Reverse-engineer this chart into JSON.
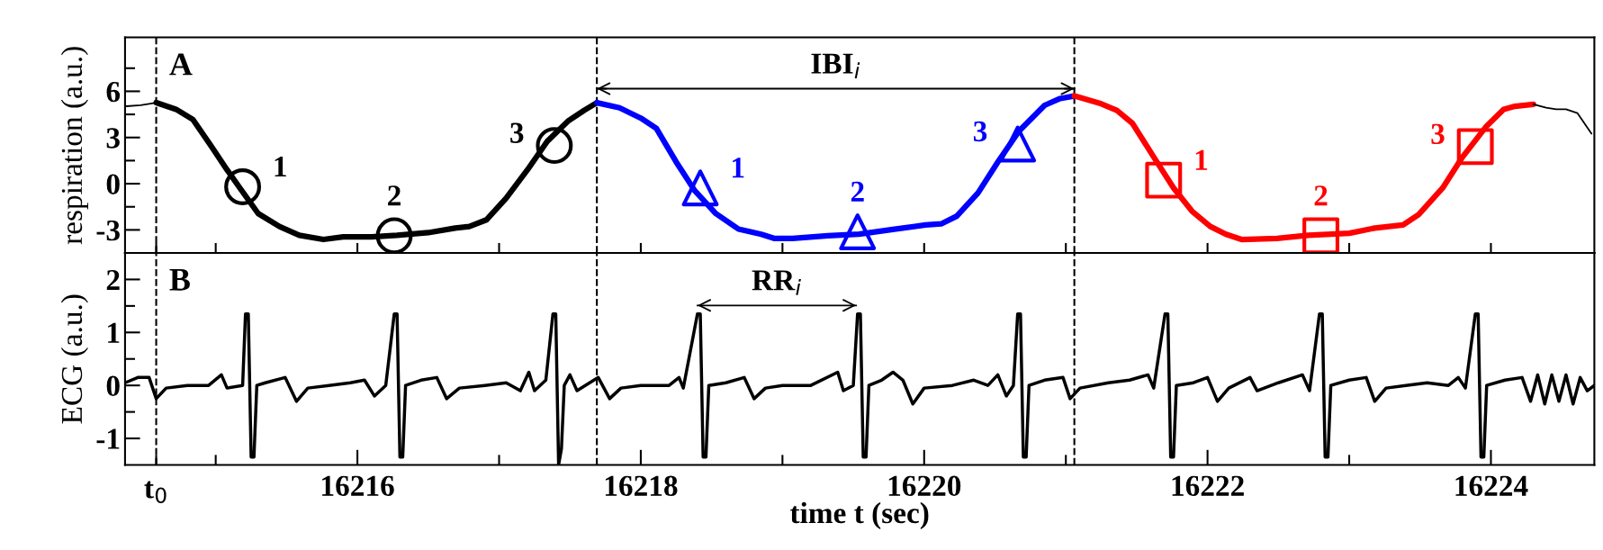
{
  "chart_data": [
    {
      "type": "line",
      "title": "A",
      "ylabel": "respiration (a.u.)",
      "xlim": [
        16214.36,
        16224.73
      ],
      "ylim": [
        -4.5,
        9.5
      ],
      "xticks": [
        {
          "value": 16214.58,
          "label": null
        },
        {
          "value": 16215,
          "label": null
        },
        {
          "value": 16216,
          "label": null
        },
        {
          "value": 16217,
          "label": null
        },
        {
          "value": 16218,
          "label": null
        },
        {
          "value": 16219,
          "label": null
        },
        {
          "value": 16220,
          "label": null
        },
        {
          "value": 16221,
          "label": null
        },
        {
          "value": 16222,
          "label": null
        },
        {
          "value": 16223,
          "label": null
        },
        {
          "value": 16224,
          "label": null
        }
      ],
      "yticks": [
        -3,
        {
          "value": -1.5,
          "label": null
        },
        0,
        {
          "value": 1.5,
          "label": null
        },
        3,
        {
          "value": 4.5,
          "label": null
        },
        6,
        {
          "value": 7.5,
          "label": null
        }
      ],
      "tick_labels": "y",
      "grid": false,
      "legend": false,
      "ref_lines": [
        {
          "axis": "x",
          "value": 16214.58,
          "line_style": "dashed",
          "color": "#000000"
        },
        {
          "axis": "x",
          "value": 16217.69,
          "line_style": "dashed",
          "color": "#000000"
        },
        {
          "axis": "x",
          "value": 16221.06,
          "line_style": "dashed",
          "color": "#000000"
        }
      ],
      "annotations": [
        {
          "text": "IBI$_{i}$",
          "x": 16219.375,
          "y": 6.17
        },
        {
          "text": "1",
          "x": 16215.19,
          "y": -0.2
        },
        {
          "text": "2",
          "x": 16216.26,
          "y": -3.38
        },
        {
          "text": "3",
          "x": 16217.39,
          "y": 2.48
        },
        {
          "text": "1",
          "x": 16218.42,
          "y": -0.27
        },
        {
          "text": "2",
          "x": 16219.53,
          "y": -3.12
        },
        {
          "text": "3",
          "x": 16220.66,
          "y": 2.58
        },
        {
          "text": "1",
          "x": 16221.69,
          "y": 0.23
        },
        {
          "text": "2",
          "x": 16222.8,
          "y": -3.38
        },
        {
          "text": "3",
          "x": 16223.89,
          "y": 2.41
        }
      ],
      "series": [
        {
          "color": "#000000",
          "x": [
            16214.37,
            16214.47,
            16214.58
          ],
          "values": [
            5.03,
            5.1,
            5.26
          ]
        },
        {
          "color": "#000000",
          "x": [
            16214.58,
            16214.72,
            16214.84,
            16214.97,
            16215.08,
            16215.17,
            16215.3,
            16215.45,
            16215.59,
            16215.76,
            16215.9,
            16216.1,
            16216.28,
            16216.5,
            16216.69,
            16216.79,
            16216.91,
            16217.05,
            16217.2,
            16217.34,
            16217.49,
            16217.6,
            16217.69
          ],
          "values": [
            5.26,
            4.83,
            4.16,
            2.41,
            0.9,
            -0.27,
            -1.94,
            -2.78,
            -3.35,
            -3.62,
            -3.45,
            -3.45,
            -3.35,
            -3.18,
            -2.88,
            -2.78,
            -2.35,
            -0.94,
            0.9,
            2.75,
            4.09,
            4.76,
            5.26
          ]
        },
        {
          "color": "#0000ff",
          "x": [
            16217.69,
            16217.85,
            16218.0,
            16218.11,
            16218.25,
            16218.38,
            16218.53,
            16218.69,
            16218.85,
            16218.94,
            16219.07,
            16219.32,
            16219.54,
            16219.79,
            16220.01,
            16220.12,
            16220.23,
            16220.38,
            16220.52,
            16220.67,
            16220.85,
            16220.96,
            16221.06
          ],
          "values": [
            5.26,
            4.93,
            4.26,
            3.59,
            1.41,
            -0.44,
            -1.94,
            -2.95,
            -3.28,
            -3.55,
            -3.55,
            -3.38,
            -3.28,
            -2.95,
            -2.68,
            -2.61,
            -2.11,
            -0.6,
            1.41,
            3.42,
            5.09,
            5.53,
            5.7
          ]
        },
        {
          "color": "#ff0000",
          "x": [
            16221.06,
            16221.25,
            16221.36,
            16221.47,
            16221.62,
            16221.76,
            16221.89,
            16222.02,
            16222.13,
            16222.24,
            16222.49,
            16222.71,
            16223.0,
            16223.18,
            16223.38,
            16223.49,
            16223.66,
            16223.8,
            16223.97,
            16224.09,
            16224.17,
            16224.3
          ],
          "values": [
            5.7,
            5.19,
            4.76,
            3.92,
            1.74,
            -0.27,
            -1.78,
            -2.78,
            -3.28,
            -3.62,
            -3.55,
            -3.35,
            -3.22,
            -2.88,
            -2.68,
            -2.01,
            -0.27,
            1.74,
            3.75,
            4.83,
            5.03,
            5.16
          ]
        },
        {
          "color": "#000000",
          "x": [
            16224.3,
            16224.39,
            16224.46,
            16224.53,
            16224.61,
            16224.71
          ],
          "values": [
            5.16,
            4.93,
            4.83,
            4.83,
            4.59,
            3.25
          ]
        },
        {
          "type": "scatter",
          "marker": "circle",
          "color": "#000000",
          "x": [
            16215.19
          ],
          "values": [
            -0.2
          ]
        },
        {
          "type": "scatter",
          "marker": "circle",
          "color": "#000000",
          "x": [
            16216.26
          ],
          "values": [
            -3.38
          ]
        },
        {
          "type": "scatter",
          "marker": "circle",
          "color": "#000000",
          "x": [
            16217.39
          ],
          "values": [
            2.48
          ]
        },
        {
          "type": "scatter",
          "marker": "triangle",
          "color": "#0000ff",
          "x": [
            16218.42
          ],
          "values": [
            -0.27
          ]
        },
        {
          "type": "scatter",
          "marker": "triangle",
          "color": "#0000ff",
          "x": [
            16219.53
          ],
          "values": [
            -3.12
          ]
        },
        {
          "type": "scatter",
          "marker": "triangle",
          "color": "#0000ff",
          "x": [
            16220.66
          ],
          "values": [
            2.58
          ]
        },
        {
          "type": "scatter",
          "marker": "square",
          "color": "#ff0000",
          "x": [
            16221.69
          ],
          "values": [
            0.23
          ]
        },
        {
          "type": "scatter",
          "marker": "square",
          "color": "#ff0000",
          "x": [
            16222.8
          ],
          "values": [
            -3.38
          ]
        },
        {
          "type": "scatter",
          "marker": "square",
          "color": "#ff0000",
          "x": [
            16223.89
          ],
          "values": [
            2.41
          ]
        },
        {
          "color": "#000000",
          "x": [
            16217.69,
            16221.06
          ],
          "values": [
            6.17,
            6.17
          ]
        }
      ]
    },
    {
      "type": "line",
      "title": "B",
      "ylabel": "ECG (a.u.)",
      "xlabel": "time t (sec)",
      "xlim": [
        16214.36,
        16224.73
      ],
      "ylim": [
        -1.5,
        2.5
      ],
      "xticks": [
        {
          "value": 16214.58,
          "label": null
        },
        {
          "value": 16215,
          "label": null
        },
        16216,
        {
          "value": 16217,
          "label": null
        },
        16218,
        {
          "value": 16219,
          "label": null
        },
        16220,
        {
          "value": 16221,
          "label": null
        },
        16222,
        {
          "value": 16223,
          "label": null
        },
        16224
      ],
      "yticks": [
        -1,
        {
          "value": -0.5,
          "label": null
        },
        0,
        {
          "value": 0.5,
          "label": null
        },
        1,
        {
          "value": 1.5,
          "label": null
        },
        2
      ],
      "grid": false,
      "legend": false,
      "ref_lines": [
        {
          "axis": "x",
          "value": 16214.58,
          "line_style": "dashed",
          "color": "#000000",
          "label": "t$_{0}$"
        },
        {
          "axis": "x",
          "value": 16217.69,
          "line_style": "dashed",
          "color": "#000000"
        },
        {
          "axis": "x",
          "value": 16221.06,
          "line_style": "dashed",
          "color": "#000000"
        }
      ],
      "annotations": [
        {
          "text": "RR$_{i}$",
          "x": 16218.96,
          "y": 1.51
        }
      ],
      "series": [
        {
          "color": "#000000",
          "x": [
            16214.36,
            16214.45,
            16214.53,
            16214.58,
            16214.65,
            16214.8,
            16214.95,
            16215.04,
            16215.08,
            16215.19,
            16215.21,
            16215.23,
            16215.25,
            16215.27,
            16215.29,
            16215.35,
            16215.49,
            16215.57,
            16215.65,
            16215.8,
            16215.95,
            16216.05,
            16216.12,
            16216.2,
            16216.26,
            16216.28,
            16216.3,
            16216.32,
            16216.34,
            16216.45,
            16216.56,
            16216.63,
            16216.72,
            16216.9,
            16217.05,
            16217.15,
            16217.21,
            16217.25,
            16217.33,
            16217.38,
            16217.4,
            16217.42,
            16217.44,
            16217.46,
            16217.5,
            16217.55,
            16217.7,
            16217.78,
            16217.86,
            16218.0,
            16218.2,
            16218.27,
            16218.3,
            16218.4,
            16218.42,
            16218.44,
            16218.46,
            16218.48,
            16218.6,
            16218.73,
            16218.8,
            16218.88,
            16219.0,
            16219.2,
            16219.39,
            16219.43,
            16219.5,
            16219.53,
            16219.55,
            16219.57,
            16219.59,
            16219.61,
            16219.7,
            16219.78,
            16219.85,
            16219.92,
            16220.0,
            16220.2,
            16220.35,
            16220.45,
            16220.52,
            16220.58,
            16220.63,
            16220.66,
            16220.68,
            16220.7,
            16220.72,
            16220.74,
            16220.85,
            16220.98,
            16221.03,
            16221.1,
            16221.3,
            16221.45,
            16221.58,
            16221.62,
            16221.7,
            16221.72,
            16221.74,
            16221.76,
            16221.78,
            16221.9,
            16222.0,
            16222.07,
            16222.15,
            16222.3,
            16222.35,
            16222.5,
            16222.67,
            16222.72,
            16222.79,
            16222.81,
            16222.83,
            16222.85,
            16222.87,
            16223.0,
            16223.12,
            16223.18,
            16223.26,
            16223.4,
            16223.55,
            16223.7,
            16223.77,
            16223.82,
            16223.89,
            16223.91,
            16223.93,
            16223.95,
            16223.97,
            16224.1,
            16224.22,
            16224.28,
            16224.33,
            16224.38,
            16224.43,
            16224.48,
            16224.53,
            16224.58,
            16224.63,
            16224.68,
            16224.73
          ],
          "values": [
            0.05,
            0.15,
            0.15,
            -0.25,
            -0.05,
            0,
            0,
            0.2,
            -0.05,
            0,
            1.35,
            1.35,
            -1.35,
            -1.35,
            0,
            0.05,
            0.15,
            -0.3,
            -0.05,
            0,
            0.05,
            0.1,
            -0.2,
            0,
            1.35,
            1.35,
            -1.35,
            -1.35,
            0,
            0.1,
            0.15,
            -0.25,
            -0.05,
            0,
            0.05,
            -0.1,
            0.25,
            -0.1,
            0.1,
            1.35,
            1.35,
            -1.5,
            -1.2,
            0,
            0.2,
            -0.1,
            0.15,
            -0.25,
            -0.05,
            0,
            0,
            0.15,
            -0.05,
            1.35,
            1.35,
            -1.35,
            -1.35,
            0,
            0.05,
            0.15,
            -0.25,
            -0.05,
            0,
            0,
            0.25,
            -0.1,
            0,
            1.35,
            1.35,
            -1.35,
            -1.35,
            0,
            0.1,
            0.25,
            0.1,
            -0.35,
            -0.05,
            0,
            0.1,
            0,
            0.2,
            -0.2,
            0,
            1.35,
            1.35,
            -1.35,
            -1.35,
            0,
            0.1,
            0.15,
            -0.25,
            -0.05,
            0.05,
            0.1,
            0.2,
            -0.05,
            1.35,
            1.35,
            -1.35,
            -1.35,
            0,
            0.05,
            0.15,
            -0.3,
            -0.05,
            0.15,
            -0.1,
            0.05,
            0.2,
            -0.1,
            1.35,
            1.35,
            -1.35,
            -1.35,
            0,
            0.1,
            0.15,
            -0.3,
            -0.05,
            0,
            0.05,
            0,
            0.15,
            -0.05,
            1.35,
            1.35,
            -1.35,
            -1.35,
            0,
            0.1,
            0.15,
            -0.3,
            0.2,
            -0.35,
            0.2,
            -0.3,
            0.2,
            -0.35,
            0.15,
            -0.1,
            0
          ]
        },
        {
          "color": "#000000",
          "x": [
            16218.4,
            16219.52
          ],
          "values": [
            1.51,
            1.51
          ]
        }
      ]
    }
  ]
}
